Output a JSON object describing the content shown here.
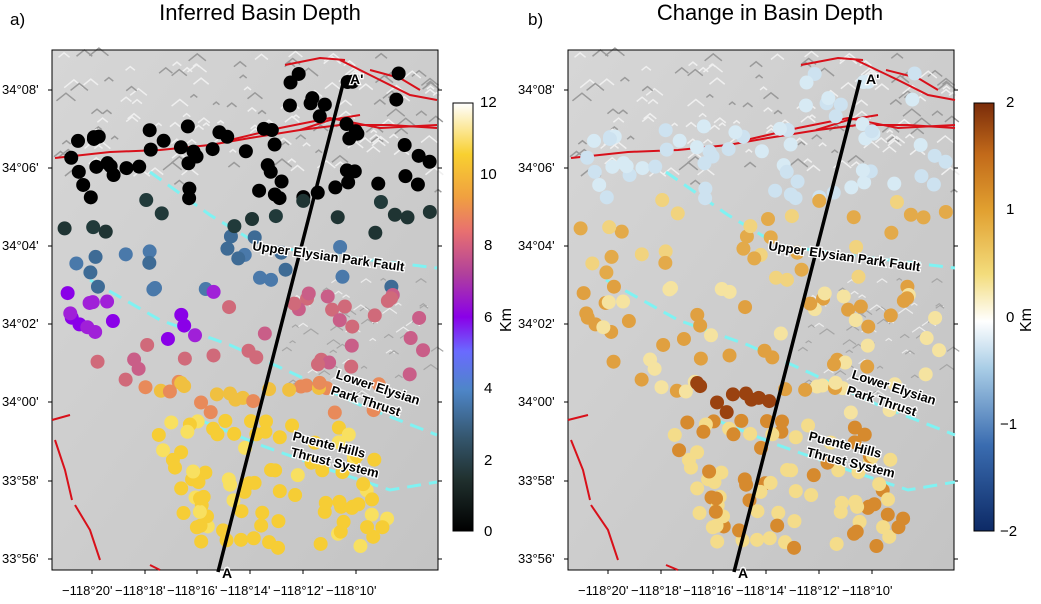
{
  "colors": {
    "fault_active": "#d8101a",
    "fault_blind": "#7ff2f2",
    "profile_line": "#000000",
    "hillshade": "#c8c8c8"
  },
  "panel_a": {
    "letter": "a)",
    "title": "Inferred Basin Depth",
    "colorbar": {
      "ticks": [
        "12",
        "10",
        "8",
        "6",
        "4",
        "2",
        "0"
      ],
      "unit": "Km",
      "range": [
        0,
        12
      ],
      "colormap": [
        "#000000",
        "#2f4f4f",
        "#3a6ea5",
        "#6a6aff",
        "#8a00e8",
        "#d05a8a",
        "#f0a040",
        "#f8d030",
        "#fffde0"
      ]
    }
  },
  "panel_b": {
    "letter": "b)",
    "title": "Change in Basin Depth",
    "colorbar": {
      "ticks": [
        "2",
        "1",
        "0",
        "−1",
        "−2"
      ],
      "unit": "Km",
      "range": [
        -2,
        2
      ],
      "colormap": [
        "#0d2a66",
        "#3a6cb0",
        "#a9cde6",
        "#ffffff",
        "#f3dc7c",
        "#e1a030",
        "#c26a1a",
        "#7a2c0a"
      ]
    }
  },
  "map": {
    "lat_labels": [
      "34°08'",
      "34°06'",
      "34°04'",
      "34°02'",
      "34°00'",
      "33°58'",
      "33°56'"
    ],
    "lon_labels": [
      "−118°20'",
      "−118°18'",
      "−118°16'",
      "−118°14'",
      "−118°12'",
      "−118°10'"
    ],
    "annotations": {
      "upper_fault": "Upper Elysian Park Fault",
      "lower_line1": "Lower Elysian",
      "lower_line2": "Park Thrust",
      "puente_line1": "Puente Hills",
      "puente_line2": "Thrust System",
      "point_a": "A",
      "point_a_prime": "A'"
    }
  }
}
